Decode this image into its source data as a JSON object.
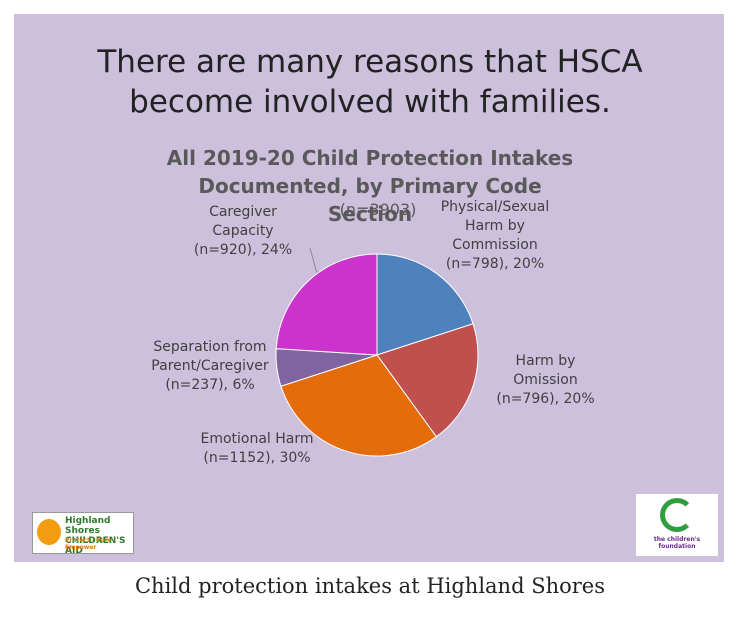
{
  "heading": "There are many reasons that HSCA become involved with families.",
  "chart_data": {
    "type": "pie",
    "title": "All 2019-20 Child Protection Intakes Documented, by Primary Code Section",
    "subtitle": "(n=3903)",
    "categories": [
      "Physical/Sexual Harm by Commission (n=798), 20%",
      "Harm by Omission (n=796), 20%",
      "Emotional Harm (n=1152), 30%",
      "Separation from Parent/Caregiver (n=237), 6%",
      "Caregiver Capacity (n=920), 24%"
    ],
    "values": [
      20,
      20,
      30,
      6,
      24
    ],
    "colors": [
      "#4f81bd",
      "#c0504d",
      "#e46c0a",
      "#8064a2",
      "#cc33cc"
    ]
  },
  "logos": [
    {
      "name": "Highland Shores CHILDREN'S AID",
      "tagline": "Protect · Care · Empower"
    },
    {
      "name": "the children's foundation"
    }
  ],
  "caption": "Child protection intakes at Highland Shores"
}
